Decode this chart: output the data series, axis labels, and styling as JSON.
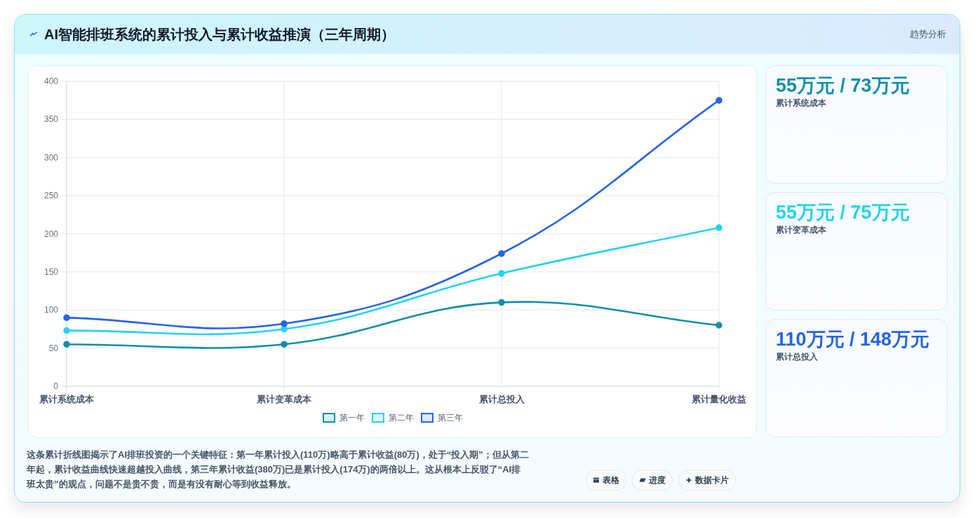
{
  "chart_data": [
    {
      "type": "line",
      "title": "AI智能排班系统的累计投入与累计收益推演（三年周期）",
      "categories": [
        "累计系统成本",
        "累计变革成本",
        "累计总投入",
        "累计量化收益"
      ],
      "series": [
        {
          "name": "第一年",
          "color": "#0e8fa9",
          "values": [
            55,
            55,
            110,
            80
          ]
        },
        {
          "name": "第二年",
          "color": "#22d3ee",
          "values": [
            73,
            75,
            148,
            208
          ]
        },
        {
          "name": "第三年",
          "color": "#2563eb",
          "values": [
            90,
            82,
            174,
            375
          ]
        }
      ],
      "ylim": [
        0,
        400
      ],
      "yticks": [
        0,
        50,
        100,
        150,
        200,
        250,
        300,
        350,
        400
      ],
      "grid": true,
      "legend": "bottom",
      "marker": "circle",
      "annotations": [
        "趋势分析",
        "这条累计折线图揭示了AI排班投资的一个关键特征：第一年累计投入(110万)略高于累计收益(80万)，处于“投入期”；但从第二年起，累计收益曲线快速超越投入曲线，第三年累计收益(380万)已是累计投入(174万)的两倍以上。这从根本上反驳了“AI排班太贵”的观点，问题不是贵不贵，而是有没有耐心等到收益释放。",
        "表格",
        "进度",
        "数据卡片"
      ]
    },
    {
      "type": "other",
      "title": "55万元 / 73万元",
      "subtitle": "累计系统成本",
      "color": "#0e8fa9"
    },
    {
      "type": "other",
      "title": "55万元 / 75万元",
      "subtitle": "累计变革成本",
      "color": "#22d3ee"
    },
    {
      "type": "other",
      "title": "110万元 / 148万元",
      "subtitle": "累计总投入",
      "color": "#2563eb"
    }
  ]
}
